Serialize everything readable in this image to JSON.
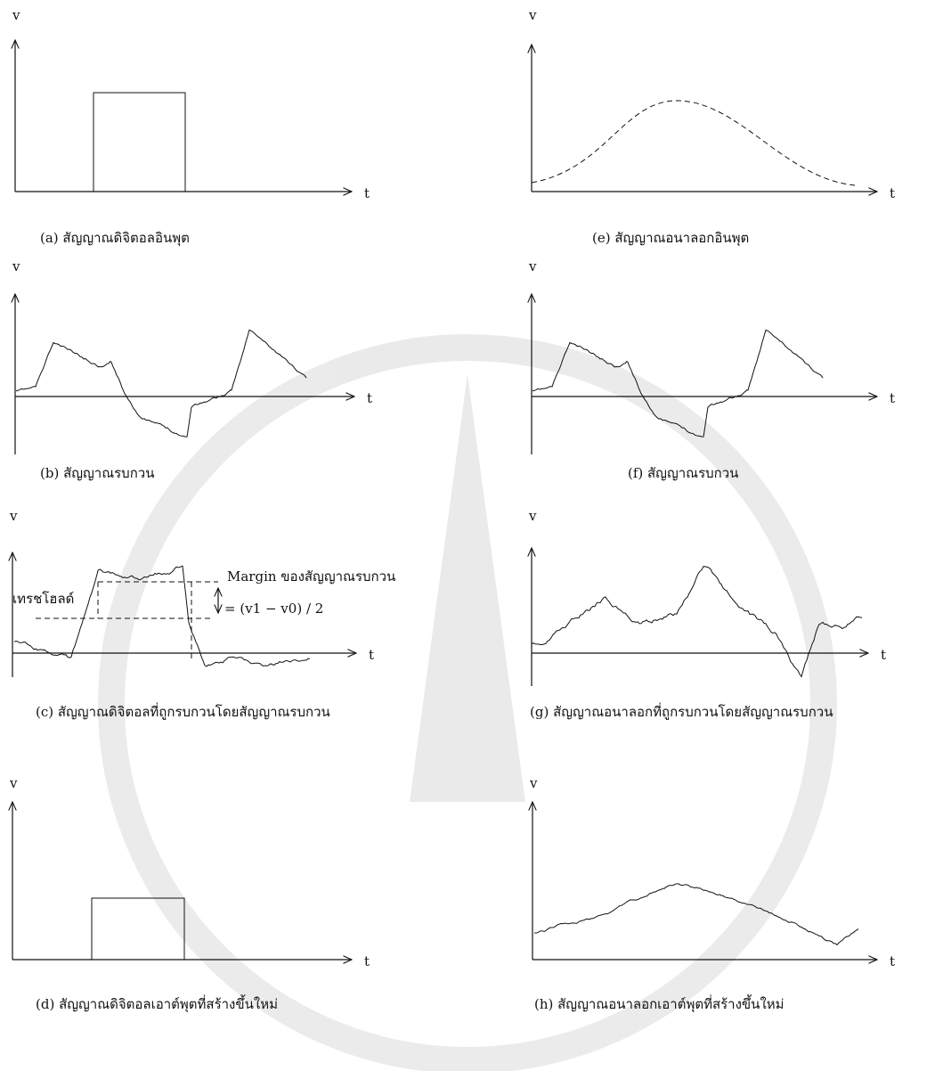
{
  "panels": [
    {
      "y_label": "v",
      "x_label": "t",
      "caption": "(a) สัญญาณดิจิตอลอินพุต"
    },
    {
      "y_label": "v",
      "x_label": "t",
      "caption": "(e) สัญญาณอนาลอกอินพุต"
    },
    {
      "y_label": "v",
      "x_label": "t",
      "caption": "(b) สัญญาณรบกวน"
    },
    {
      "y_label": "v",
      "x_label": "t",
      "caption": "(f) สัญญาณรบกวน"
    },
    {
      "y_label": "v",
      "x_label": "t",
      "caption": "(c) สัญญาณดิจิตอลที่ถูกรบกวนโดยสัญญาณรบกวน"
    },
    {
      "y_label": "v",
      "x_label": "t",
      "caption": "(g) สัญญาณอนาลอกที่ถูกรบกวนโดยสัญญาณรบกวน"
    },
    {
      "y_label": "v",
      "x_label": "t",
      "caption": "(d) สัญญาณดิจิตอลเอาต์พุตที่สร้างขึ้นใหม่"
    },
    {
      "y_label": "v",
      "x_label": "t",
      "caption": "(h) สัญญาณอนาลอกเอาต์พุตที่สร้างขึ้นใหม่"
    }
  ],
  "annotations": {
    "margin": "Margin ของสัญญาณรบกวน",
    "threshold": "เทรชโฮลด์",
    "formula": "= (v1 − v0) / 2"
  }
}
